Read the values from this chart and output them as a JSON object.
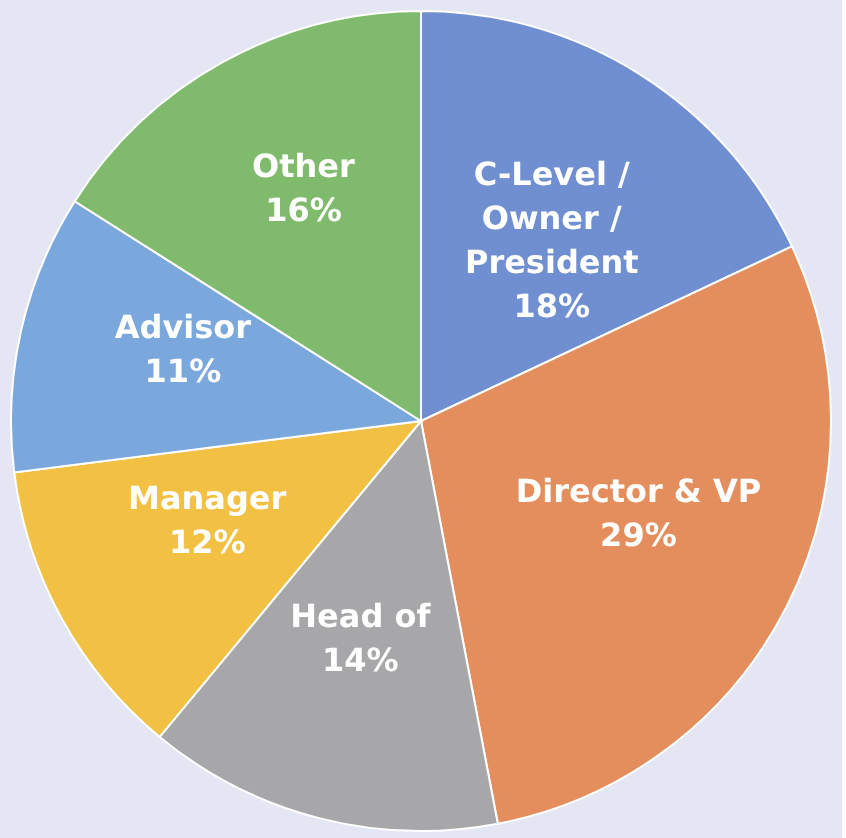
{
  "chart_data": {
    "type": "pie",
    "categories": [
      "C-Level / Owner / President",
      "Director & VP",
      "Head of",
      "Manager",
      "Advisor",
      "Other"
    ],
    "values": [
      18,
      29,
      14,
      12,
      11,
      16
    ],
    "value_labels": [
      "18%",
      "29%",
      "14%",
      "12%",
      "11%",
      "16%"
    ],
    "colors": [
      "#6f8fd0",
      "#e48e5e",
      "#a7a7a9",
      "#f2c042",
      "#7aa7dc",
      "#80ba6c"
    ],
    "legend": false
  }
}
